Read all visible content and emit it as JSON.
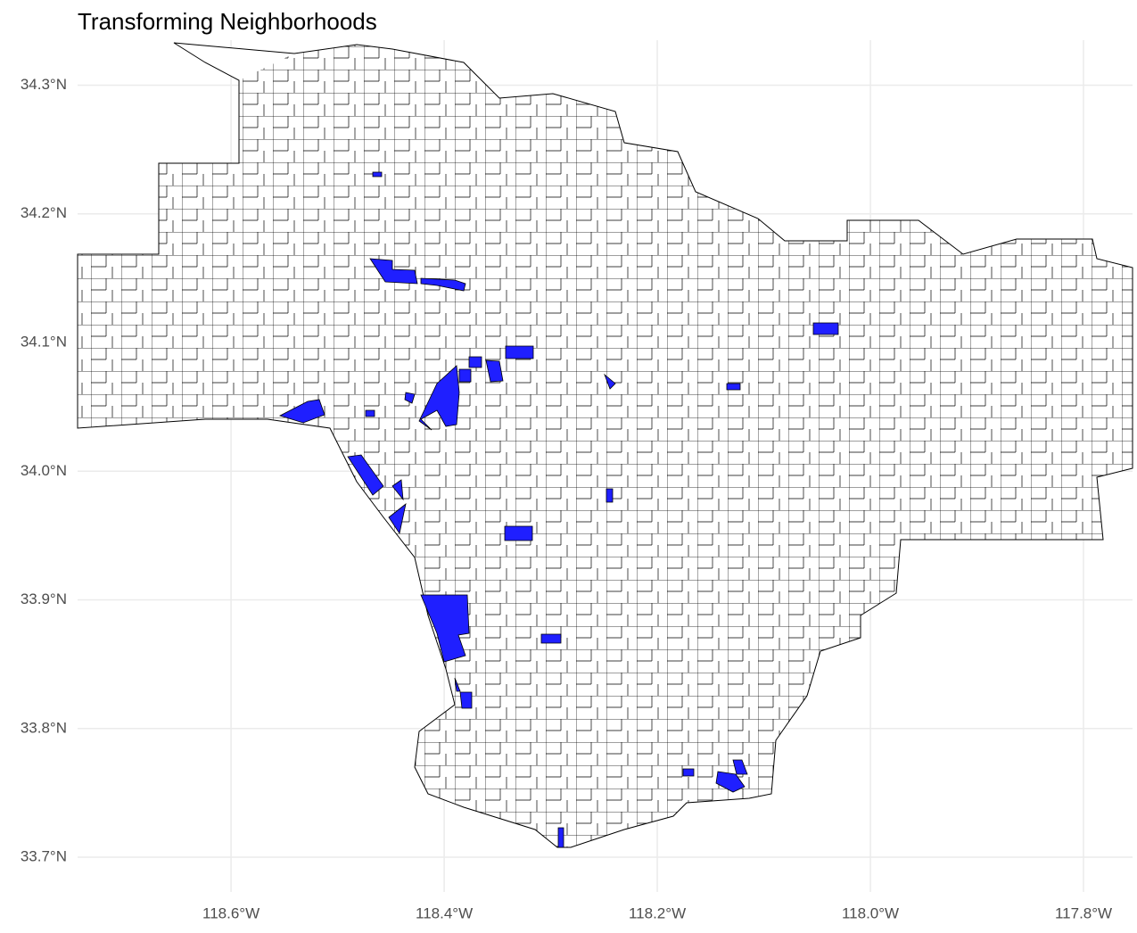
{
  "chart_data": {
    "type": "map",
    "title": "Transforming Neighborhoods",
    "xlim": [
      -118.744,
      -117.754
    ],
    "ylim": [
      33.673,
      34.335
    ],
    "xticks": [
      {
        "value": -118.6,
        "label": "118.6°W"
      },
      {
        "value": -118.4,
        "label": "118.4°W"
      },
      {
        "value": -118.2,
        "label": "118.2°W"
      },
      {
        "value": -118.0,
        "label": "118.0°W"
      },
      {
        "value": -117.8,
        "label": "117.8°W"
      }
    ],
    "yticks": [
      {
        "value": 33.7,
        "label": "33.7°N"
      },
      {
        "value": 33.8,
        "label": "33.8°N"
      },
      {
        "value": 33.9,
        "label": "33.9°N"
      },
      {
        "value": 34.0,
        "label": "34.0°N"
      },
      {
        "value": 34.1,
        "label": "34.1°N"
      },
      {
        "value": 34.2,
        "label": "34.2°N"
      },
      {
        "value": 34.3,
        "label": "34.3°N"
      }
    ],
    "grid": true,
    "color": "#1f1fff"
  }
}
